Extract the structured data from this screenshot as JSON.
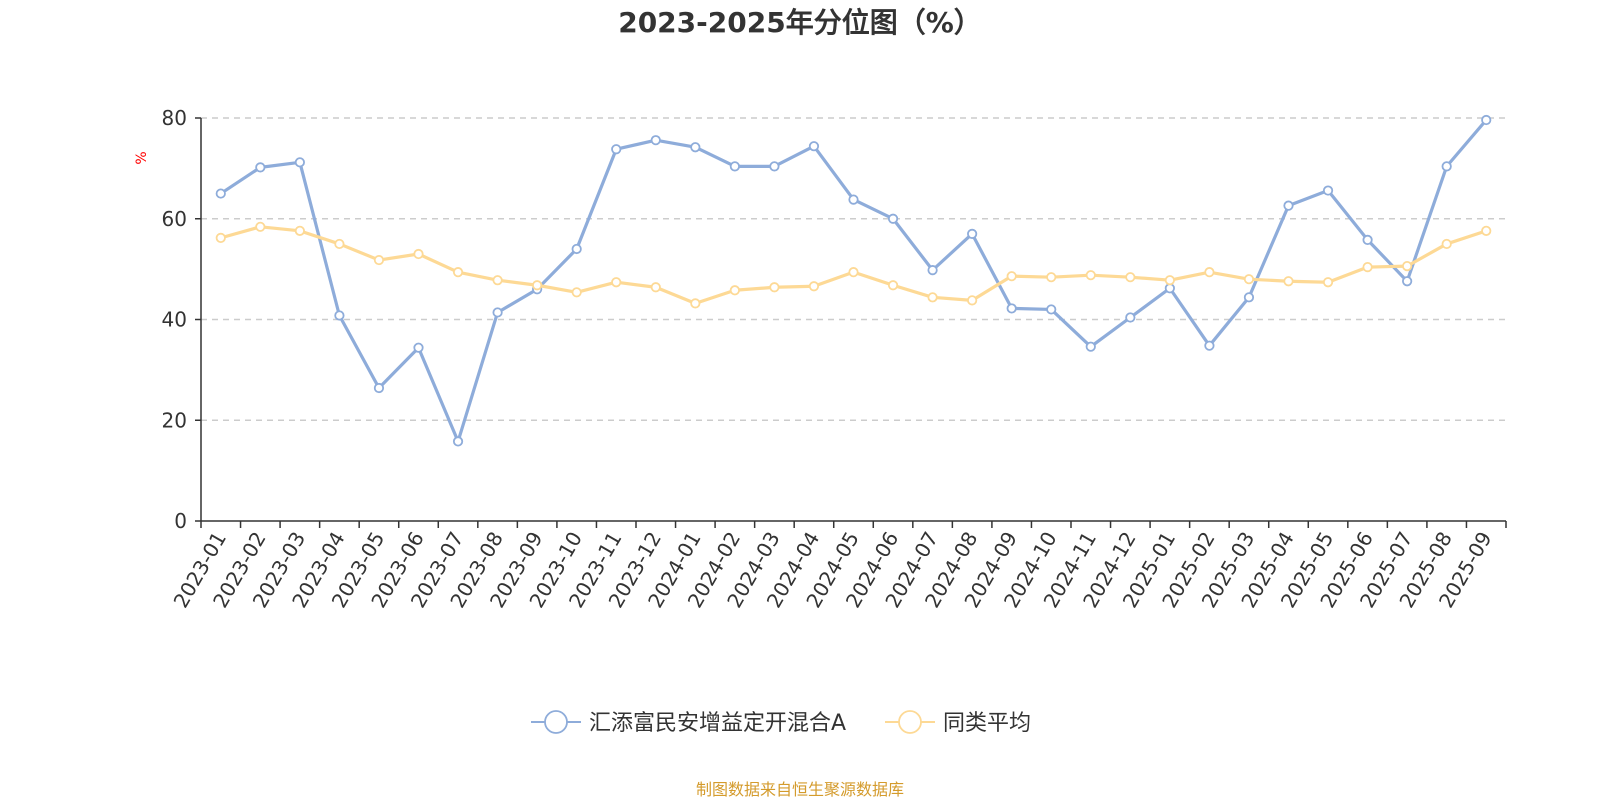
{
  "chart_data": {
    "type": "line",
    "title": "2023-2025年分位图（%）",
    "ylabel": "%",
    "xlabel": "",
    "ylim": [
      0,
      80
    ],
    "yticks": [
      "0",
      "20",
      "40",
      "60",
      "80"
    ],
    "grid": true,
    "legend_position": "bottom-center",
    "categories": [
      "2023-01",
      "2023-02",
      "2023-03",
      "2023-04",
      "2023-05",
      "2023-06",
      "2023-07",
      "2023-08",
      "2023-09",
      "2023-10",
      "2023-11",
      "2023-12",
      "2024-01",
      "2024-02",
      "2024-03",
      "2024-04",
      "2024-05",
      "2024-06",
      "2024-07",
      "2024-08",
      "2024-09",
      "2024-10",
      "2024-11",
      "2024-12",
      "2025-01",
      "2025-02",
      "2025-03",
      "2025-04",
      "2025-05",
      "2025-06",
      "2025-07",
      "2025-08",
      "2025-09"
    ],
    "series": [
      {
        "name": "汇添富民安增益定开混合A",
        "color": "#8eacda",
        "values": [
          65.0,
          70.2,
          71.2,
          40.8,
          26.4,
          34.4,
          15.8,
          41.4,
          46.0,
          54.0,
          73.8,
          75.6,
          74.2,
          70.4,
          70.4,
          74.4,
          63.8,
          60.0,
          49.8,
          57.0,
          42.2,
          42.0,
          34.6,
          40.4,
          46.2,
          34.8,
          44.4,
          62.6,
          65.6,
          55.8,
          47.6,
          70.4,
          79.6
        ]
      },
      {
        "name": "同类平均",
        "color": "#fdd995",
        "values": [
          56.2,
          58.4,
          57.6,
          55.0,
          51.8,
          53.0,
          49.4,
          47.8,
          46.8,
          45.4,
          47.4,
          46.4,
          43.2,
          45.8,
          46.4,
          46.6,
          49.4,
          46.8,
          44.4,
          43.8,
          48.6,
          48.4,
          48.8,
          48.4,
          47.8,
          49.4,
          48.0,
          47.6,
          47.4,
          50.4,
          50.6,
          55.0,
          57.6
        ]
      }
    ]
  },
  "source_note": "制图数据来自恒生聚源数据库"
}
